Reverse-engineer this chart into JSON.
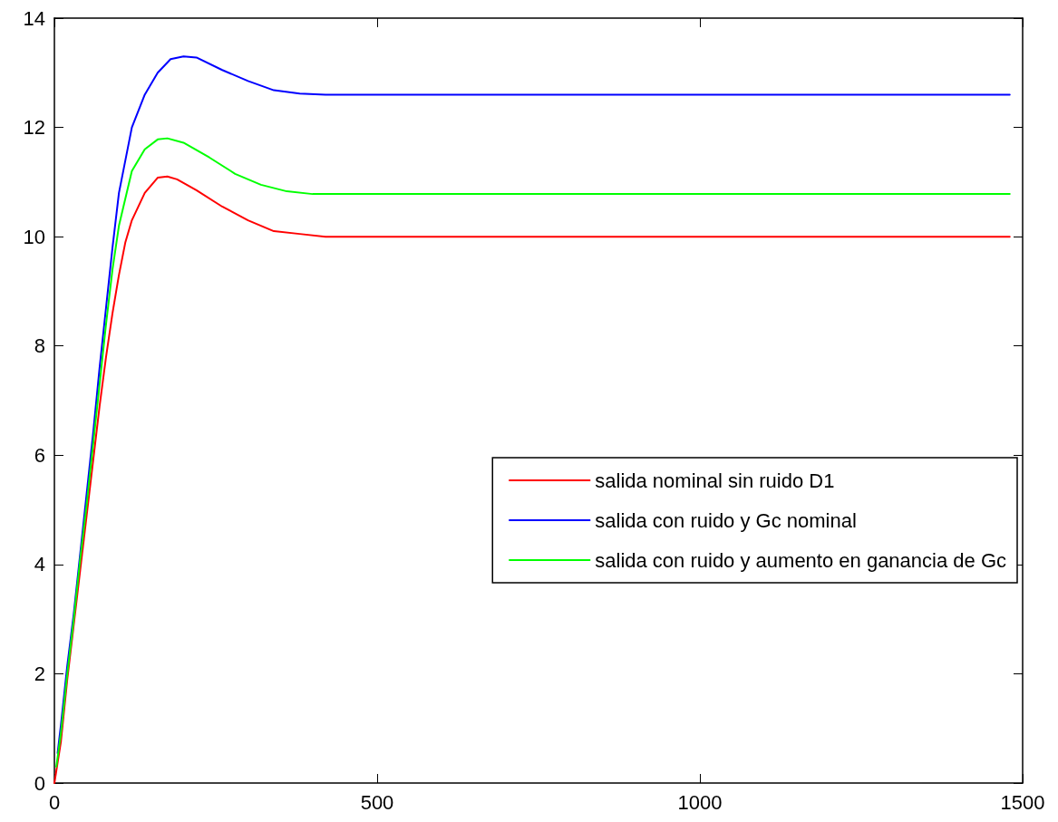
{
  "chart_data": {
    "type": "line",
    "xlim": [
      0,
      1500
    ],
    "xticks": [
      0,
      500,
      1000,
      1500
    ],
    "ylim": [
      0,
      14
    ],
    "yticks": [
      0,
      2,
      4,
      6,
      8,
      10,
      12,
      14
    ],
    "grid": false,
    "legend": "right",
    "marker": "none",
    "line_style": "solid",
    "series": [
      {
        "name": "salida nominal sin ruido D1",
        "color": "#ff0000",
        "x": [
          0,
          10,
          20,
          30,
          40,
          50,
          60,
          70,
          80,
          90,
          100,
          110,
          120,
          140,
          160,
          175,
          190,
          220,
          260,
          300,
          340,
          380,
          420,
          1480
        ],
        "values": [
          0,
          0.75,
          1.9,
          2.9,
          3.9,
          4.9,
          5.9,
          6.9,
          7.8,
          8.6,
          9.3,
          9.9,
          10.3,
          10.8,
          11.08,
          11.1,
          11.05,
          10.85,
          10.55,
          10.3,
          10.1,
          10.05,
          10.0,
          10.0
        ]
      },
      {
        "name": "salida con ruido y Gc nominal",
        "color": "#0000ff",
        "x": [
          5,
          10,
          20,
          30,
          40,
          50,
          60,
          70,
          80,
          90,
          100,
          120,
          140,
          160,
          180,
          200,
          220,
          260,
          300,
          340,
          380,
          420,
          1480
        ],
        "values": [
          0.55,
          1.05,
          2.15,
          3.1,
          4.2,
          5.3,
          6.4,
          7.6,
          8.7,
          9.8,
          10.8,
          12.0,
          12.6,
          13.0,
          13.25,
          13.3,
          13.28,
          13.05,
          12.85,
          12.68,
          12.62,
          12.6,
          12.6
        ]
      },
      {
        "name": "salida con ruido y aumento en ganancia de Gc",
        "color": "#00ff00",
        "x": [
          3,
          10,
          20,
          30,
          40,
          50,
          60,
          70,
          80,
          90,
          100,
          120,
          140,
          160,
          175,
          200,
          240,
          280,
          320,
          360,
          400,
          1480
        ],
        "values": [
          0.3,
          0.9,
          2.0,
          3.0,
          4.1,
          5.1,
          6.2,
          7.3,
          8.4,
          9.4,
          10.2,
          11.2,
          11.6,
          11.78,
          11.8,
          11.72,
          11.45,
          11.15,
          10.95,
          10.83,
          10.78,
          10.78
        ]
      }
    ]
  }
}
